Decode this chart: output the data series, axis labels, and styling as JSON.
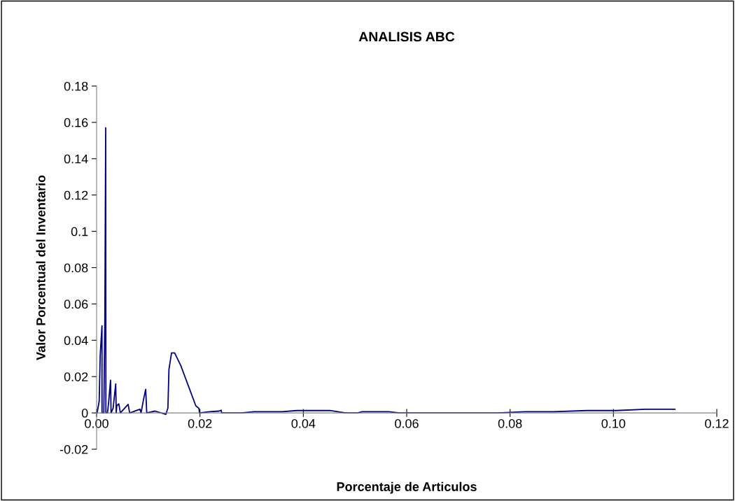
{
  "chart_data": {
    "type": "line",
    "title": "ANALISIS ABC",
    "xlabel": "Porcentaje de Articulos",
    "ylabel": "Valor Porcentual del Inventario",
    "x": [
      0.0001,
      0.0005,
      0.0007,
      0.00104,
      0.00105,
      0.0014,
      0.0016,
      0.00176,
      0.0018,
      0.0021,
      0.0023,
      0.0027,
      0.0028,
      0.0032,
      0.0037,
      0.0038,
      0.0039,
      0.0043,
      0.0046,
      0.0061,
      0.0064,
      0.007,
      0.0077,
      0.0084,
      0.0086,
      0.0091,
      0.0095,
      0.0097,
      0.0113,
      0.0134,
      0.0138,
      0.014,
      0.0145,
      0.0151,
      0.0163,
      0.0192,
      0.0198,
      0.0199,
      0.0219,
      0.0237,
      0.0241,
      0.0242,
      0.028,
      0.0305,
      0.0359,
      0.0387,
      0.0451,
      0.0482,
      0.0505,
      0.0514,
      0.0565,
      0.0586,
      0.0777,
      0.0829,
      0.0884,
      0.0948,
      0.1005,
      0.1062,
      0.1119
    ],
    "series": [
      {
        "color": "#000080",
        "values": [
          0,
          0.0064,
          0.032,
          0.048,
          0,
          0,
          0.053,
          0.157,
          0,
          0,
          0.005,
          0.018,
          0,
          0.0026,
          0.016,
          0,
          0.0039,
          0.005,
          0,
          0.0047,
          0,
          0.0006,
          0.0013,
          0.002,
          0,
          0.0077,
          0.013,
          0,
          0.001,
          -0.0008,
          0.0027,
          0.024,
          0.033,
          0.033,
          0.026,
          0.0039,
          0.0025,
          0,
          0.0007,
          0.001,
          0.0015,
          0,
          0,
          0.0007,
          0.0007,
          0.0013,
          0.0013,
          0,
          0,
          0.0007,
          0.0007,
          0,
          0,
          0.0007,
          0.0007,
          0.0013,
          0.0013,
          0.002,
          0.002
        ]
      }
    ],
    "xlim": [
      0,
      0.12
    ],
    "ylim": [
      -0.02,
      0.18
    ],
    "xticks": [
      {
        "value": 0,
        "label": "0.00"
      },
      {
        "value": 0.02,
        "label": "0.02"
      },
      {
        "value": 0.04,
        "label": "0.04"
      },
      {
        "value": 0.06,
        "label": "0.06"
      },
      {
        "value": 0.08,
        "label": "0.08"
      },
      {
        "value": 0.1,
        "label": "0.10"
      },
      {
        "value": 0.12,
        "label": "0.12"
      }
    ],
    "yticks": [
      -0.02,
      0,
      0.02,
      0.04,
      0.06,
      0.08,
      0.1,
      0.12,
      0.14,
      0.16,
      0.18
    ],
    "grid": false,
    "legend": false,
    "marker": "none",
    "line_style": "solid"
  }
}
